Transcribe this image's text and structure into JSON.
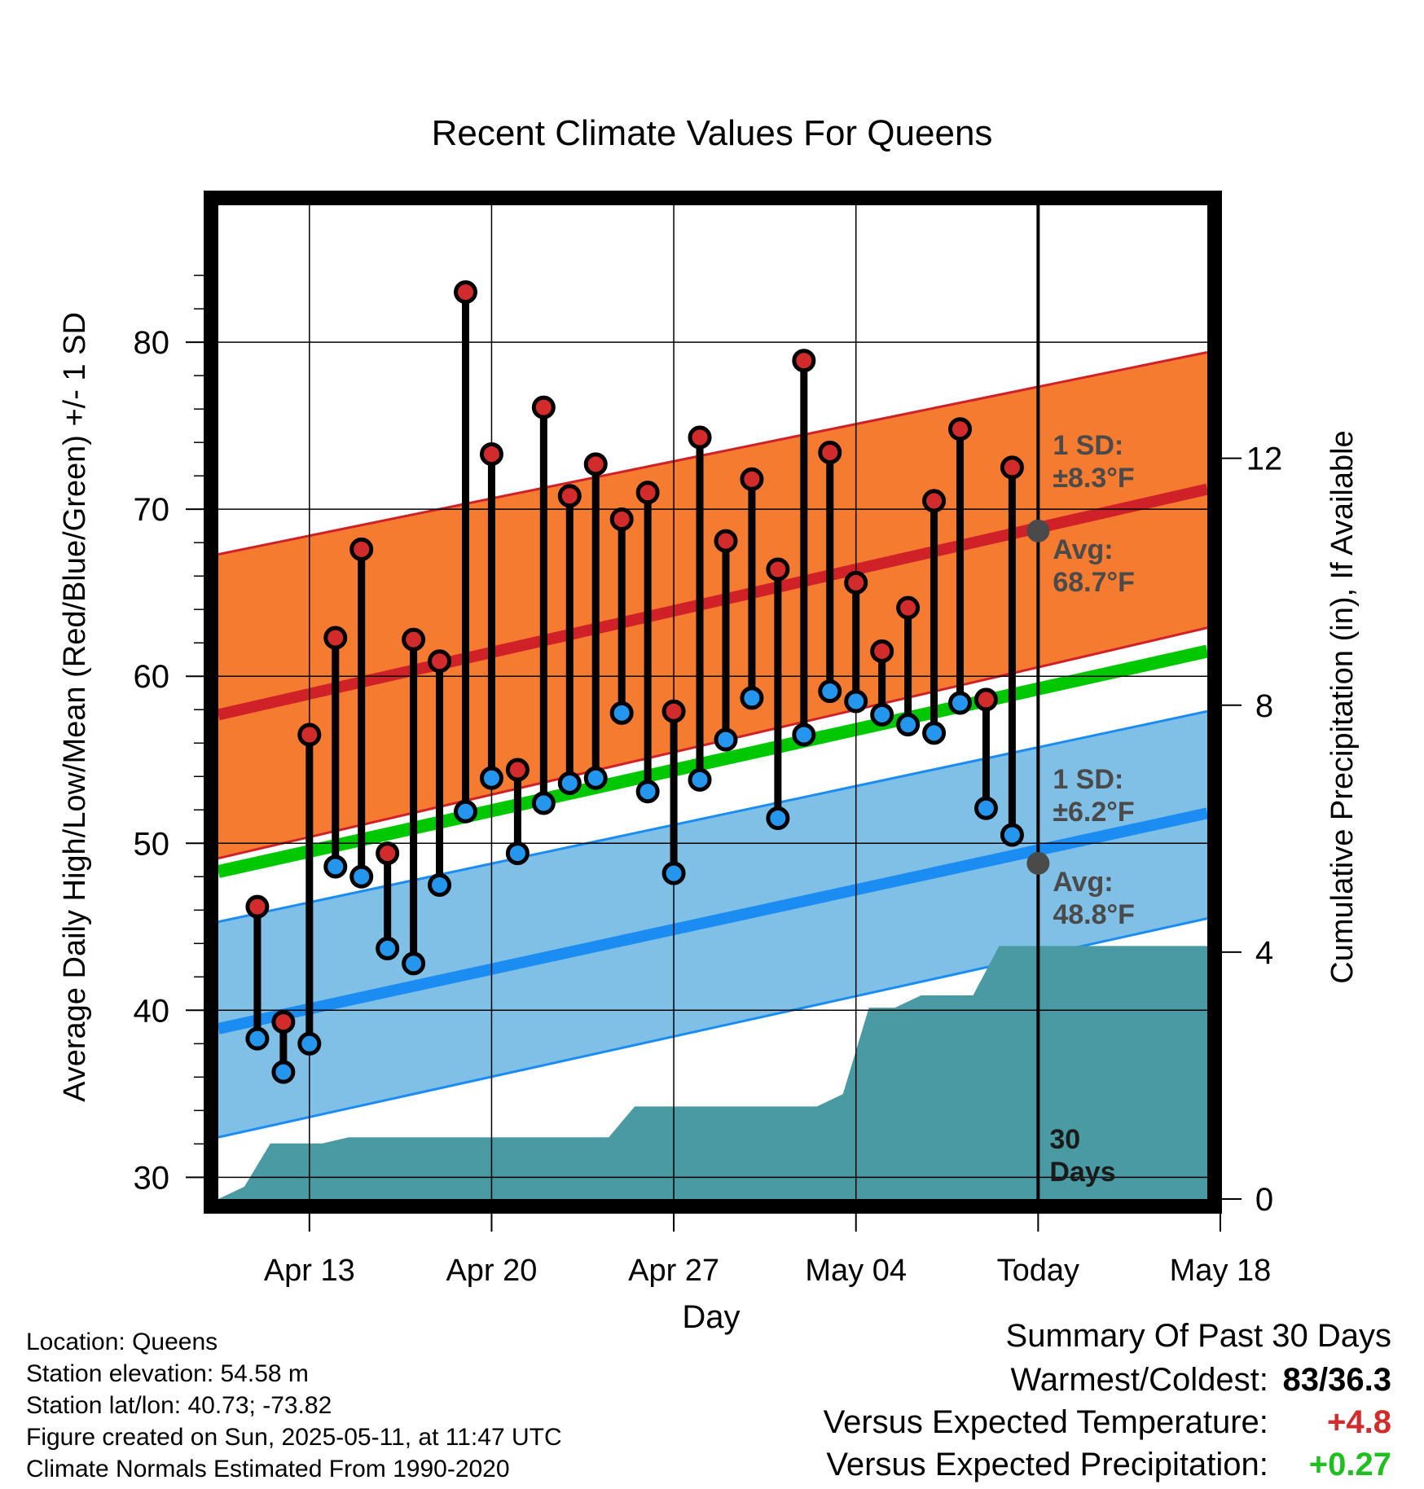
{
  "chart_data": {
    "type": "line",
    "title": "Recent Climate Values For Queens",
    "xlabel": "Day",
    "ylabel": "Average Daily High/Low/Mean (Red/Blue/Green) +/- 1 SD",
    "y2label": "Cumulative Precipitation (in), If Available",
    "ylim": [
      28.7,
      88.2
    ],
    "y2lim": [
      0,
      16.1
    ],
    "y_ticks": [
      30,
      40,
      50,
      60,
      70,
      80
    ],
    "y2_ticks": [
      0,
      4,
      8,
      12
    ],
    "x_range_days": [
      -31.5,
      6.5
    ],
    "x_tick_labels": [
      {
        "day": -28,
        "label": "Apr 13"
      },
      {
        "day": -21,
        "label": "Apr 20"
      },
      {
        "day": -14,
        "label": "Apr 27"
      },
      {
        "day": -7,
        "label": "May 04"
      },
      {
        "day": 0,
        "label": "Today"
      },
      {
        "day": 7,
        "label": "May 18"
      }
    ],
    "grid": true,
    "observed": {
      "days": [
        -30,
        -29,
        -28,
        -27,
        -26,
        -25,
        -24,
        -23,
        -22,
        -21,
        -20,
        -19,
        -18,
        -17,
        -16,
        -15,
        -14,
        -13,
        -12,
        -11,
        -10,
        -9,
        -8,
        -7,
        -6,
        -5,
        -4,
        -3,
        -2,
        -1
      ],
      "high": [
        46.2,
        39.3,
        56.5,
        62.3,
        67.6,
        49.4,
        62.2,
        60.9,
        83,
        73.3,
        54.4,
        76.1,
        70.8,
        72.7,
        69.4,
        71,
        57.9,
        74.3,
        68.1,
        71.8,
        66.4,
        78.9,
        73.4,
        65.6,
        61.5,
        64.1,
        70.5,
        74.8,
        58.6,
        72.5
      ],
      "low": [
        38.3,
        36.3,
        38,
        48.6,
        48,
        43.7,
        42.8,
        47.5,
        51.9,
        53.9,
        49.4,
        52.4,
        53.6,
        53.9,
        57.8,
        53.1,
        48.2,
        53.8,
        56.2,
        58.7,
        51.5,
        56.5,
        59.1,
        58.5,
        57.7,
        57.1,
        56.6,
        58.4,
        52.1,
        50.5
      ]
    },
    "normals": {
      "days": [
        -31.5,
        6.5
      ],
      "high_mean": [
        57.7,
        71.2
      ],
      "high_upper": [
        67.3,
        79.4
      ],
      "high_lower": [
        49.1,
        62.9
      ],
      "low_mean": [
        38.9,
        51.8
      ],
      "low_upper": [
        45.3,
        57.9
      ],
      "low_lower": [
        32.4,
        45.5
      ],
      "mean": [
        48.3,
        61.5
      ]
    },
    "precip": {
      "days": [
        -31.5,
        -30.5,
        -29.5,
        -28.5,
        -27.5,
        -26.5,
        -17.5,
        -16.5,
        -15.5,
        -14.5,
        -13.5,
        -12.5,
        -11.5,
        -10.5,
        -9.5,
        -8.5,
        -7.5,
        -6.5,
        -5.5,
        -4.5,
        -3.5,
        -2.5,
        -1.5,
        -0.5,
        6.5
      ],
      "values": [
        0,
        0.2,
        0.9,
        0.9,
        0.9,
        1.0,
        1.0,
        1.0,
        1.5,
        1.5,
        1.5,
        1.5,
        1.5,
        1.5,
        1.5,
        1.5,
        1.7,
        3.1,
        3.1,
        3.3,
        3.3,
        3.3,
        4.1,
        4.1,
        4.1
      ]
    },
    "annotations": [
      {
        "id": "high_sd",
        "lines": [
          "1 SD:",
          "±8.3°F"
        ]
      },
      {
        "id": "high_avg",
        "lines": [
          "Avg:",
          "68.7°F"
        ],
        "y": 68.7
      },
      {
        "id": "low_sd",
        "lines": [
          "1 SD:",
          "±6.2°F"
        ]
      },
      {
        "id": "low_avg",
        "lines": [
          "Avg:",
          "48.8°F"
        ],
        "y": 48.8
      },
      {
        "id": "days",
        "lines": [
          "30",
          "Days"
        ]
      }
    ]
  },
  "info": {
    "location": "Location: Queens",
    "elevation": "Station elevation: 54.58 m",
    "latlon": "Station lat/lon: 40.73; -73.82",
    "created": "Figure created on Sun, 2025-05-11, at 11:47 UTC",
    "normals": "Climate Normals Estimated From 1990-2020"
  },
  "summary": {
    "heading": "Summary Of Past 30 Days",
    "warmest_label": "Warmest/Coldest:",
    "warmest_value": "83/36.3",
    "temp_label": "Versus Expected Temperature:",
    "temp_value": "+4.8",
    "precip_label": "Versus Expected Precipitation:",
    "precip_value": "+0.27"
  },
  "colors": {
    "high_band": "#f47b30",
    "high_line": "#cf2127",
    "low_band": "#80bfe6",
    "low_line": "#1a8cf2",
    "mean_line": "#00c800",
    "precip": "#4a9aa3",
    "high_dot": "#d22b2b",
    "low_dot": "#2496ee",
    "label_gray": "#4a4a4a"
  }
}
